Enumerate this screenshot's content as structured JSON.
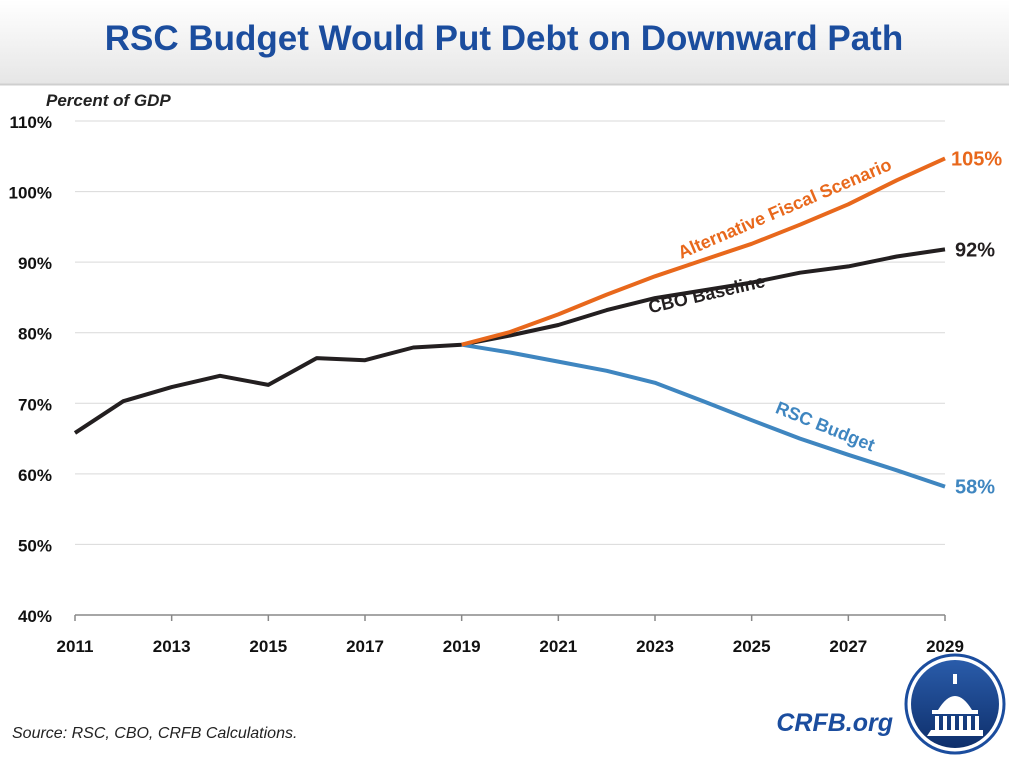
{
  "chart_data": {
    "type": "line",
    "title": "RSC Budget Would Put Debt on Downward Path",
    "y_label": "Percent of GDP",
    "source": "Source: RSC, CBO, CRFB Calculations.",
    "brand": "CRFB.org",
    "x": [
      2011,
      2012,
      2013,
      2014,
      2015,
      2016,
      2017,
      2018,
      2019,
      2020,
      2021,
      2022,
      2023,
      2024,
      2025,
      2026,
      2027,
      2028,
      2029
    ],
    "xlim": [
      2011,
      2029
    ],
    "xticks": [
      2011,
      2013,
      2015,
      2017,
      2019,
      2021,
      2023,
      2025,
      2027,
      2029
    ],
    "ylim": [
      40,
      110
    ],
    "yticks": [
      {
        "value": 40,
        "label": "40%"
      },
      {
        "value": 50,
        "label": "50%"
      },
      {
        "value": 60,
        "label": "60%"
      },
      {
        "value": 70,
        "label": "70%"
      },
      {
        "value": 80,
        "label": "80%"
      },
      {
        "value": 90,
        "label": "90%"
      },
      {
        "value": 100,
        "label": "100%"
      },
      {
        "value": 110,
        "label": "110%"
      }
    ],
    "grid": true,
    "series": [
      {
        "name": "Alternative Fiscal Scenario",
        "color": "#e8681c",
        "values": [
          null,
          null,
          null,
          null,
          null,
          null,
          null,
          null,
          78.3,
          80.1,
          82.6,
          85.4,
          88.0,
          90.3,
          92.6,
          95.3,
          98.2,
          101.6,
          104.7
        ],
        "value_labels": [
          null,
          null,
          null,
          null,
          null,
          null,
          null,
          null,
          null,
          null,
          null,
          null,
          null,
          null,
          null,
          null,
          null,
          null,
          "105%"
        ]
      },
      {
        "name": "CBO Baseline",
        "color": "#231f20",
        "values": [
          65.8,
          70.3,
          72.3,
          73.9,
          72.6,
          76.4,
          76.1,
          77.9,
          78.3,
          79.6,
          81.1,
          83.2,
          84.9,
          86.0,
          87.1,
          88.5,
          89.4,
          90.8,
          91.8
        ],
        "value_labels": [
          null,
          null,
          null,
          null,
          null,
          null,
          null,
          null,
          null,
          null,
          null,
          null,
          null,
          null,
          null,
          null,
          null,
          null,
          "92%"
        ]
      },
      {
        "name": "RSC Budget",
        "color": "#3f86c0",
        "values": [
          null,
          null,
          null,
          null,
          null,
          null,
          null,
          null,
          78.3,
          77.2,
          75.9,
          74.6,
          72.9,
          70.3,
          67.6,
          65.0,
          62.7,
          60.5,
          58.2
        ],
        "value_labels": [
          null,
          null,
          null,
          null,
          null,
          null,
          null,
          null,
          null,
          null,
          null,
          null,
          null,
          null,
          null,
          null,
          null,
          null,
          "58%"
        ]
      }
    ]
  }
}
